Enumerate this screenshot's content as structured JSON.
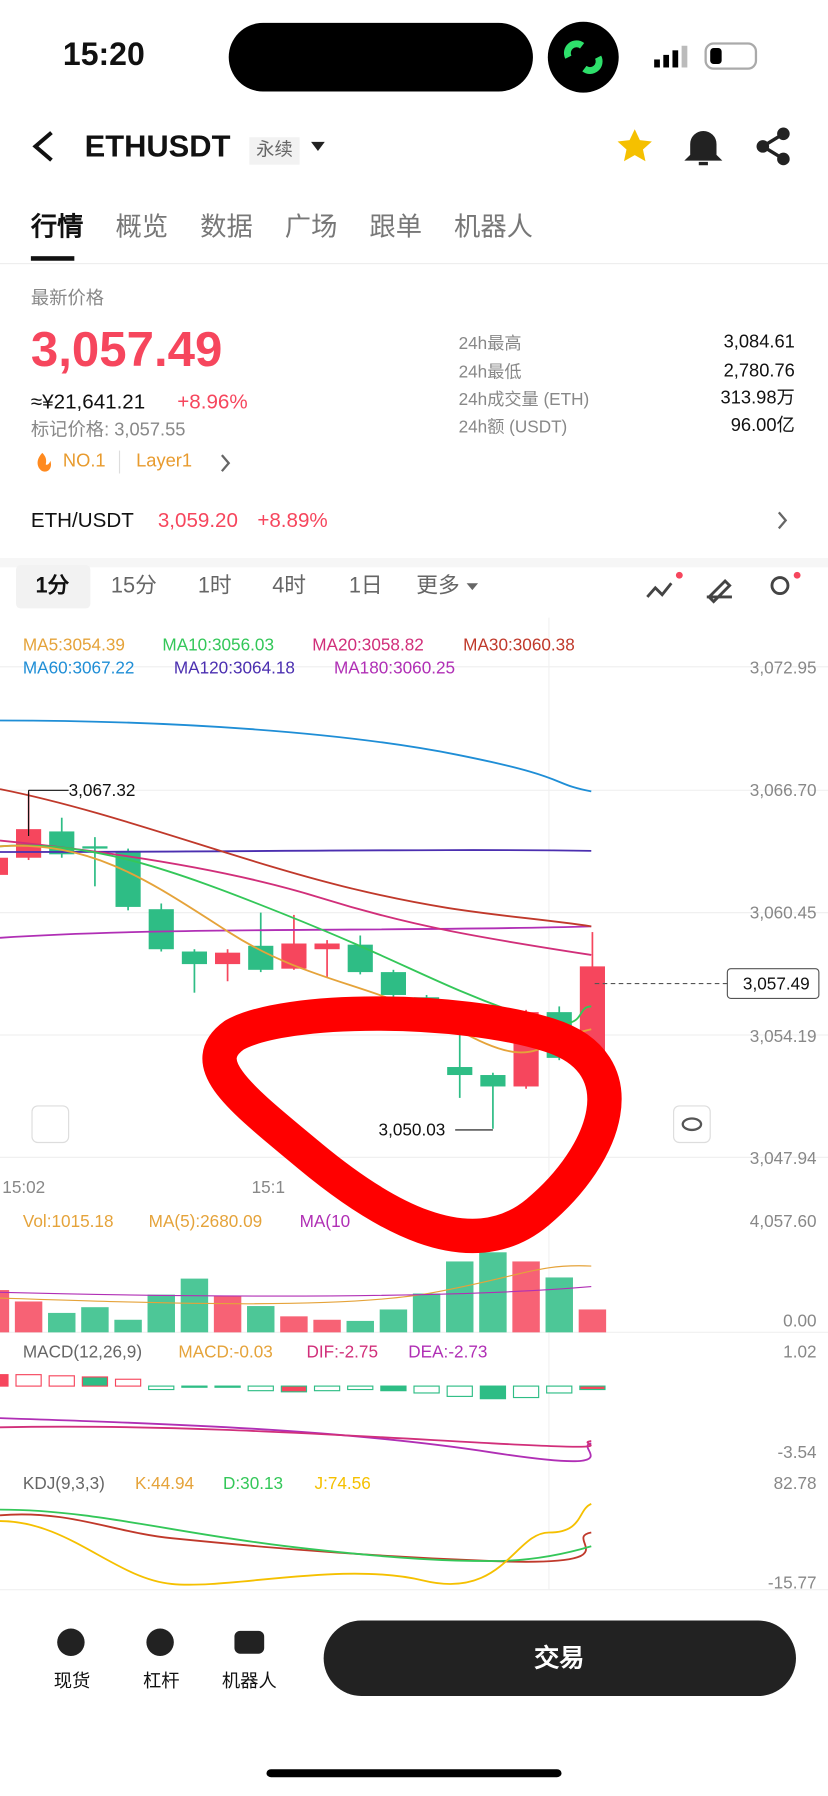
{
  "status": {
    "time": "15:20"
  },
  "header": {
    "symbol": "ETHUSDT",
    "tag": "永续"
  },
  "tabs": [
    "行情",
    "概览",
    "数据",
    "广场",
    "跟单",
    "机器人"
  ],
  "price": {
    "label": "最新价格",
    "value": "3,057.49",
    "cny": "≈¥21,641.21",
    "change": "+8.96%",
    "mark": "标记价格: 3,057.55",
    "rank": "NO.1",
    "sector": "Layer1"
  },
  "stats": [
    {
      "label": "24h最高",
      "value": "3,084.61"
    },
    {
      "label": "24h最低",
      "value": "2,780.76"
    },
    {
      "label": "24h成交量 (ETH)",
      "value": "313.98万"
    },
    {
      "label": "24h额 (USDT)",
      "value": "96.00亿"
    }
  ],
  "spot": {
    "pair": "ETH/USDT",
    "price": "3,059.20",
    "change": "+8.89%"
  },
  "intervals": [
    "1分",
    "15分",
    "1时",
    "4时",
    "1日",
    "更多"
  ],
  "ma": [
    "MA5:3054.39",
    "MA10:3056.03",
    "MA20:3058.82",
    "MA30:3060.38",
    "MA60:3067.22",
    "MA120:3064.18",
    "MA180:3060.25"
  ],
  "price_axis": [
    "3,072.95",
    "3,066.70",
    "3,060.45",
    "3,054.19",
    "3,047.94"
  ],
  "annotations": {
    "high": "3,067.32",
    "low": "3,050.03",
    "current": "3,057.49"
  },
  "time_labels": [
    "15:02",
    "15:1"
  ],
  "volume": {
    "labels": [
      "Vol:1015.18",
      "MA(5):2680.09",
      "MA(10"
    ],
    "axis": [
      "4,057.60",
      "0.00"
    ]
  },
  "macd": {
    "labels": [
      "MACD(12,26,9)",
      "MACD:-0.03",
      "DIF:-2.75",
      "DEA:-2.73"
    ],
    "axis": [
      "1.02",
      "-3.54"
    ]
  },
  "kdj": {
    "labels": [
      "KDJ(9,3,3)",
      "K:44.94",
      "D:30.13",
      "J:74.56"
    ],
    "axis": [
      "82.78",
      "-15.77"
    ]
  },
  "nav": [
    "现货",
    "杠杆",
    "机器人"
  ],
  "button": "交易"
}
